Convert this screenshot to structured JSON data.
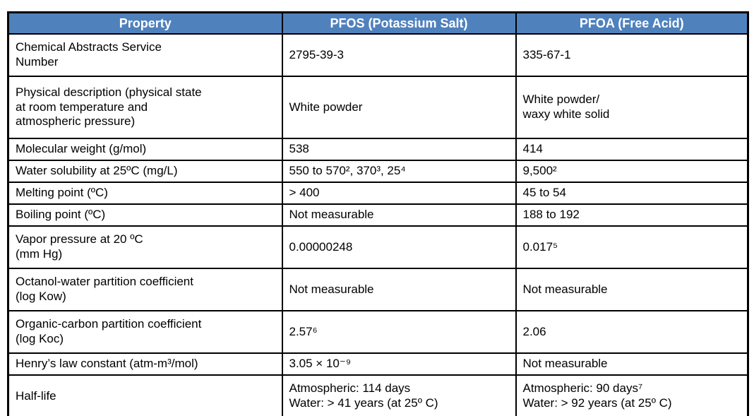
{
  "table": {
    "header_bg": "#4F81BD",
    "header_text_color": "#FFFFFF",
    "columns": {
      "property": "Property",
      "pfos": "PFOS (Potassium Salt)",
      "pfoa": "PFOA (Free Acid)"
    },
    "rows": [
      {
        "property": "Chemical Abstracts Service\nNumber",
        "pfos": "2795-39-3",
        "pfoa": "335-67-1"
      },
      {
        "property": "Physical description (physical state\nat room temperature and\natmospheric pressure)",
        "pfos": "White powder",
        "pfoa": "White powder/\nwaxy white solid"
      },
      {
        "property": "Molecular weight (g/mol)",
        "pfos": "538",
        "pfoa": "414"
      },
      {
        "property": "Water solubility at 25ºC (mg/L)",
        "pfos": "550 to 570², 370³, 25⁴",
        "pfoa": "9,500²"
      },
      {
        "property": "Melting point (ºC)",
        "pfos": "> 400",
        "pfoa": "45 to 54"
      },
      {
        "property": "Boiling point (ºC)",
        "pfos": "Not measurable",
        "pfoa": "188 to 192"
      },
      {
        "property": "Vapor pressure at 20 ºC\n(mm Hg)",
        "pfos": "0.00000248",
        "pfoa": "0.017⁵"
      },
      {
        "property": "Octanol-water partition coefficient\n(log Kow)",
        "pfos": "Not measurable",
        "pfoa": "Not measurable"
      },
      {
        "property": "Organic-carbon partition coefficient\n(log Koc)",
        "pfos": "2.57⁶",
        "pfoa": "2.06"
      },
      {
        "property": "Henry’s law constant (atm-m³/mol)",
        "pfos": "3.05 × 10⁻⁹",
        "pfoa": "Not measurable"
      },
      {
        "property": "Half-life",
        "pfos": "Atmospheric: 114 days\nWater: > 41 years (at 25º C)",
        "pfoa": "Atmospheric: 90 days⁷\nWater: > 92 years (at 25º C)"
      }
    ]
  }
}
